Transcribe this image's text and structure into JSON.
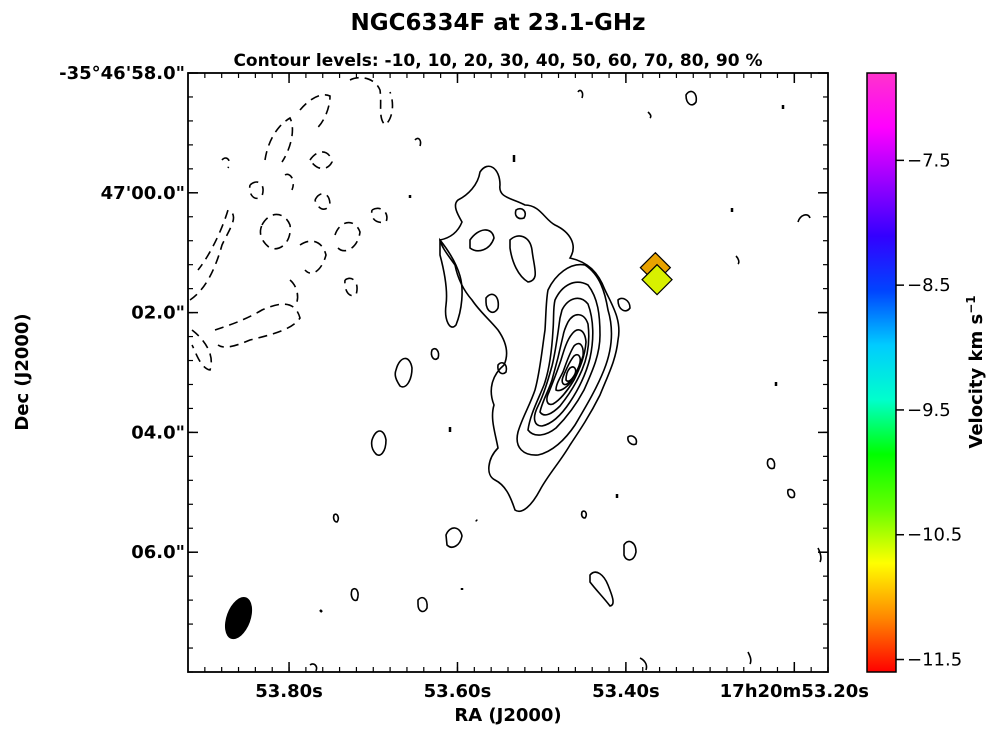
{
  "chart_data": {
    "type": "contour",
    "title": "NGC6334F at 23.1-GHz",
    "subtitle": "Contour levels: -10, 10, 20, 30, 40, 50, 60, 70, 80, 90 %",
    "xlabel": "RA (J2000)",
    "ylabel": "Dec (J2000)",
    "x_ticks": [
      {
        "label": "53.80s",
        "ra_s": 53.8
      },
      {
        "label": "53.60s",
        "ra_s": 53.6
      },
      {
        "label": "53.40s",
        "ra_s": 53.4
      },
      {
        "label": "17h20m53.20s",
        "ra_s": 53.2
      }
    ],
    "xlim": [
      53.92,
      53.16
    ],
    "y_ticks": [
      {
        "label": "-35°46'58.0\"",
        "dec_s": 58.0
      },
      {
        "label": "47'00.0\"",
        "dec_s": 60.0
      },
      {
        "label": "02.0\"",
        "dec_s": 62.0
      },
      {
        "label": "04.0\"",
        "dec_s": 64.0
      },
      {
        "label": "06.0\"",
        "dec_s": 66.0
      }
    ],
    "ylim": [
      58.0,
      68.0
    ],
    "contour_levels_percent": [
      -10,
      10,
      20,
      30,
      40,
      50,
      60,
      70,
      80,
      90
    ],
    "peak": {
      "ra_s": 53.43,
      "dec_s": 63.1
    },
    "beam": {
      "ra_s": 53.86,
      "dec_s": 67.1,
      "shape": "ellipse"
    },
    "masers": [
      {
        "ra_s": 53.365,
        "dec_s": 61.25,
        "velocity": -11.0,
        "color": "#e8a200"
      },
      {
        "ra_s": 53.363,
        "dec_s": 61.45,
        "velocity": -10.2,
        "color": "#d8f000"
      }
    ],
    "colorbar": {
      "label": "Velocity km s",
      "label_superscript": "−1",
      "range": [
        -11.6,
        -6.8
      ],
      "ticks": [
        {
          "label": "−7.5",
          "value": -7.5
        },
        {
          "label": "−8.5",
          "value": -8.5
        },
        {
          "label": "−9.5",
          "value": -9.5
        },
        {
          "label": "−10.5",
          "value": -10.5
        },
        {
          "label": "−11.5",
          "value": -11.5
        }
      ],
      "colormap_stops": [
        "#ff0000",
        "#ff8800",
        "#ffff00",
        "#66ff00",
        "#00ff00",
        "#00ffcc",
        "#00ccff",
        "#0044ff",
        "#3300ff",
        "#9900ff",
        "#ff00ff",
        "#ff33cc"
      ]
    }
  }
}
